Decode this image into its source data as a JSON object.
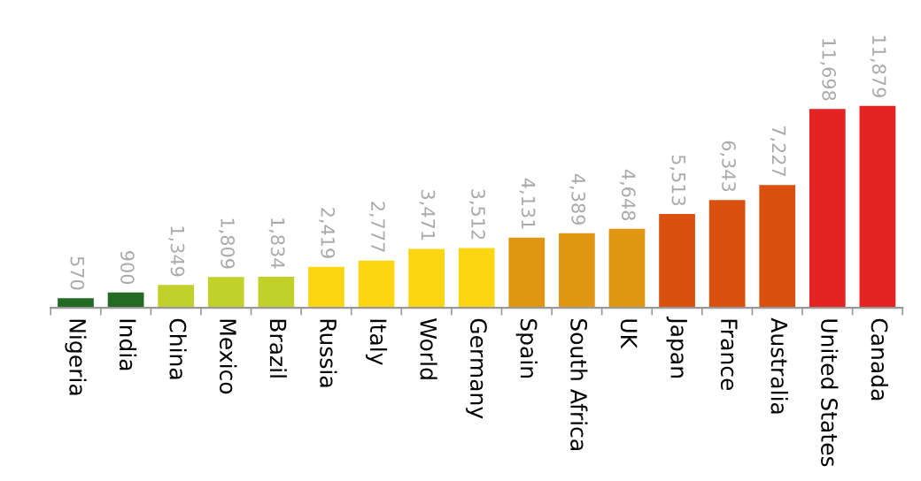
{
  "chart_data": {
    "type": "bar",
    "categories": [
      "Nigeria",
      "India",
      "China",
      "Mexico",
      "Brazil",
      "Russia",
      "Italy",
      "World",
      "Germany",
      "Spain",
      "South Africa",
      "UK",
      "Japan",
      "France",
      "Australia",
      "United States",
      "Canada"
    ],
    "values": [
      570,
      900,
      1349,
      1809,
      1834,
      2419,
      2777,
      3471,
      3512,
      4131,
      4389,
      4648,
      5513,
      6343,
      7227,
      11698,
      11879
    ],
    "value_labels": [
      "570",
      "900",
      "1,349",
      "1,809",
      "1,834",
      "2,419",
      "2,777",
      "3,471",
      "3,512",
      "4,131",
      "4,389",
      "4,648",
      "5,513",
      "6,343",
      "7,227",
      "11,698",
      "11,879"
    ],
    "colors": [
      "#236b25",
      "#236b25",
      "#c2d12a",
      "#c2d12a",
      "#c2d12a",
      "#fcd612",
      "#fcd612",
      "#fcd612",
      "#fcd612",
      "#e09612",
      "#e09612",
      "#e09612",
      "#d9500f",
      "#d9500f",
      "#d9500f",
      "#e32422",
      "#e32422"
    ],
    "grid": false,
    "legend": false
  }
}
